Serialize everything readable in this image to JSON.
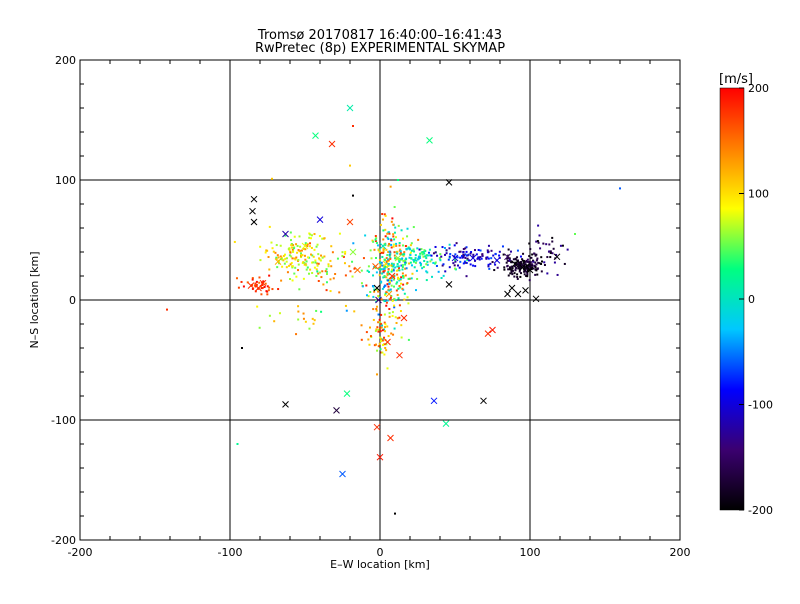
{
  "chart_data": {
    "type": "scatter",
    "title": "Tromsø 20170817 16:40:00–16:41:43",
    "subtitle": "RwPretec (8p) EXPERIMENTAL SKYMAP",
    "xlabel": "E–W location [km]",
    "ylabel": "N–S location [km]",
    "xlim": [
      -200,
      200
    ],
    "ylim": [
      -200,
      200
    ],
    "xticks": [
      -200,
      -100,
      0,
      100,
      200
    ],
    "yticks": [
      -200,
      -100,
      0,
      100,
      200
    ],
    "grid": true,
    "colorbar": {
      "label": "[m/s]",
      "min": -200,
      "max": 200,
      "ticks": [
        -200,
        -100,
        0,
        100,
        200
      ],
      "colors": [
        "#000000",
        "#3b0070",
        "#0000ff",
        "#00c8ff",
        "#00ff80",
        "#ffff00",
        "#ff8000",
        "#ff0000"
      ]
    },
    "cross_points": [
      {
        "x": -20,
        "y": 160,
        "v": 10
      },
      {
        "x": 33,
        "y": 133,
        "v": 30
      },
      {
        "x": -43,
        "y": 137,
        "v": 30
      },
      {
        "x": -32,
        "y": 130,
        "v": 180
      },
      {
        "x": 46,
        "y": 98,
        "v": -200
      },
      {
        "x": -84,
        "y": 84,
        "v": -200
      },
      {
        "x": -85,
        "y": 74,
        "v": -200
      },
      {
        "x": -84,
        "y": 65,
        "v": -200
      },
      {
        "x": -40,
        "y": 67,
        "v": -100
      },
      {
        "x": -20,
        "y": 65,
        "v": 170
      },
      {
        "x": -63,
        "y": 55,
        "v": -120
      },
      {
        "x": -86,
        "y": 12,
        "v": 180
      },
      {
        "x": -81,
        "y": 10,
        "v": 180
      },
      {
        "x": -78,
        "y": 14,
        "v": 180
      },
      {
        "x": 2,
        "y": 45,
        "v": 0
      },
      {
        "x": 4,
        "y": 30,
        "v": 100
      },
      {
        "x": 8,
        "y": 20,
        "v": 180
      },
      {
        "x": -2,
        "y": 10,
        "v": -200
      },
      {
        "x": 12,
        "y": 35,
        "v": 60
      },
      {
        "x": 50,
        "y": 35,
        "v": -100
      },
      {
        "x": 62,
        "y": 35,
        "v": -100
      },
      {
        "x": 78,
        "y": 33,
        "v": -100
      },
      {
        "x": 85,
        "y": 36,
        "v": -150
      },
      {
        "x": 90,
        "y": 30,
        "v": -200
      },
      {
        "x": 95,
        "y": 27,
        "v": -200
      },
      {
        "x": 100,
        "y": 25,
        "v": -200
      },
      {
        "x": 88,
        "y": 10,
        "v": -200
      },
      {
        "x": 92,
        "y": 5,
        "v": -200
      },
      {
        "x": 97,
        "y": 8,
        "v": -200
      },
      {
        "x": 85,
        "y": 5,
        "v": -200
      },
      {
        "x": 104,
        "y": 1,
        "v": -200
      },
      {
        "x": 118,
        "y": 36,
        "v": -200
      },
      {
        "x": 46,
        "y": 13,
        "v": -200
      },
      {
        "x": 72,
        "y": -28,
        "v": 180
      },
      {
        "x": 75,
        "y": -25,
        "v": 190
      },
      {
        "x": 5,
        "y": -35,
        "v": 180
      },
      {
        "x": 13,
        "y": -46,
        "v": 180
      },
      {
        "x": -63,
        "y": -87,
        "v": -200
      },
      {
        "x": 69,
        "y": -84,
        "v": -200
      },
      {
        "x": 36,
        "y": -84,
        "v": -80
      },
      {
        "x": -22,
        "y": -78,
        "v": 30
      },
      {
        "x": -29,
        "y": -92,
        "v": -170
      },
      {
        "x": 44,
        "y": -103,
        "v": 20
      },
      {
        "x": -2,
        "y": -106,
        "v": 180
      },
      {
        "x": 7,
        "y": -115,
        "v": 180
      },
      {
        "x": 0,
        "y": -131,
        "v": 190
      },
      {
        "x": -25,
        "y": -145,
        "v": -60
      },
      {
        "x": -18,
        "y": 40,
        "v": 60
      },
      {
        "x": -50,
        "y": 45,
        "v": 80
      },
      {
        "x": -68,
        "y": 32,
        "v": 120
      },
      {
        "x": -15,
        "y": 25,
        "v": 150
      },
      {
        "x": -3,
        "y": 28,
        "v": 160
      },
      {
        "x": 16,
        "y": -15,
        "v": 180
      },
      {
        "x": 6,
        "y": 5,
        "v": 130
      },
      {
        "x": -1,
        "y": 0,
        "v": -140
      }
    ],
    "dot_points": [
      {
        "x": -142,
        "y": -8,
        "v": 180
      },
      {
        "x": 160,
        "y": 93,
        "v": -60
      },
      {
        "x": -92,
        "y": -40,
        "v": -200
      },
      {
        "x": -95,
        "y": -120,
        "v": 20
      },
      {
        "x": 10,
        "y": -178,
        "v": -200
      },
      {
        "x": -18,
        "y": 145,
        "v": 180
      },
      {
        "x": -20,
        "y": 112,
        "v": 110
      },
      {
        "x": -72,
        "y": 101,
        "v": 110
      },
      {
        "x": -18,
        "y": 87,
        "v": -200
      },
      {
        "x": 12,
        "y": 100,
        "v": 30
      },
      {
        "x": 130,
        "y": 55,
        "v": 50
      },
      {
        "x": -2,
        "y": -62,
        "v": 130
      },
      {
        "x": 5,
        "y": -57,
        "v": 80
      }
    ],
    "clusters": [
      {
        "cx": -55,
        "cy": 38,
        "sx": 12,
        "sy": 9,
        "n": 150,
        "vmin": 40,
        "vmax": 150
      },
      {
        "cx": -80,
        "cy": 12,
        "sx": 6,
        "sy": 3,
        "n": 40,
        "vmin": 150,
        "vmax": 200
      },
      {
        "cx": 5,
        "cy": 25,
        "sx": 8,
        "sy": 22,
        "n": 320,
        "vmin": -60,
        "vmax": 200
      },
      {
        "cx": 25,
        "cy": 35,
        "sx": 12,
        "sy": 6,
        "n": 110,
        "vmin": -40,
        "vmax": 60
      },
      {
        "cx": 60,
        "cy": 36,
        "sx": 15,
        "sy": 5,
        "n": 110,
        "vmin": -150,
        "vmax": -60
      },
      {
        "cx": 95,
        "cy": 28,
        "sx": 6,
        "sy": 4,
        "n": 170,
        "vmin": -200,
        "vmax": -160
      },
      {
        "cx": 110,
        "cy": 40,
        "sx": 8,
        "sy": 8,
        "n": 40,
        "vmin": -200,
        "vmax": -120
      },
      {
        "cx": 2,
        "cy": -30,
        "sx": 6,
        "sy": 10,
        "n": 50,
        "vmin": 60,
        "vmax": 200
      },
      {
        "cx": -35,
        "cy": 28,
        "sx": 10,
        "sy": 8,
        "n": 40,
        "vmin": 20,
        "vmax": 180
      },
      {
        "cx": -50,
        "cy": -15,
        "sx": 15,
        "sy": 6,
        "n": 20,
        "vmin": 30,
        "vmax": 160
      }
    ]
  }
}
